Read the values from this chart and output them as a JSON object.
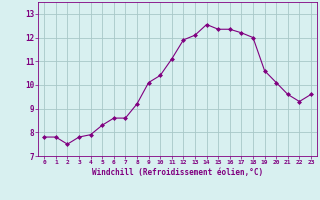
{
  "x": [
    0,
    1,
    2,
    3,
    4,
    5,
    6,
    7,
    8,
    9,
    10,
    11,
    12,
    13,
    14,
    15,
    16,
    17,
    18,
    19,
    20,
    21,
    22,
    23
  ],
  "y": [
    7.8,
    7.8,
    7.5,
    7.8,
    7.9,
    8.3,
    8.6,
    8.6,
    9.2,
    10.1,
    10.4,
    11.1,
    11.9,
    12.1,
    12.55,
    12.35,
    12.35,
    12.2,
    12.0,
    10.6,
    10.1,
    9.6,
    9.3,
    9.6
  ],
  "line_color": "#800080",
  "marker": "D",
  "marker_size": 2,
  "bg_color": "#d8f0f0",
  "grid_color": "#a8c8c8",
  "xlabel": "Windchill (Refroidissement éolien,°C)",
  "tick_color": "#800080",
  "xlim": [
    -0.5,
    23.5
  ],
  "ylim": [
    7.0,
    13.5
  ],
  "yticks": [
    7,
    8,
    9,
    10,
    11,
    12,
    13
  ],
  "xticks": [
    0,
    1,
    2,
    3,
    4,
    5,
    6,
    7,
    8,
    9,
    10,
    11,
    12,
    13,
    14,
    15,
    16,
    17,
    18,
    19,
    20,
    21,
    22,
    23
  ]
}
